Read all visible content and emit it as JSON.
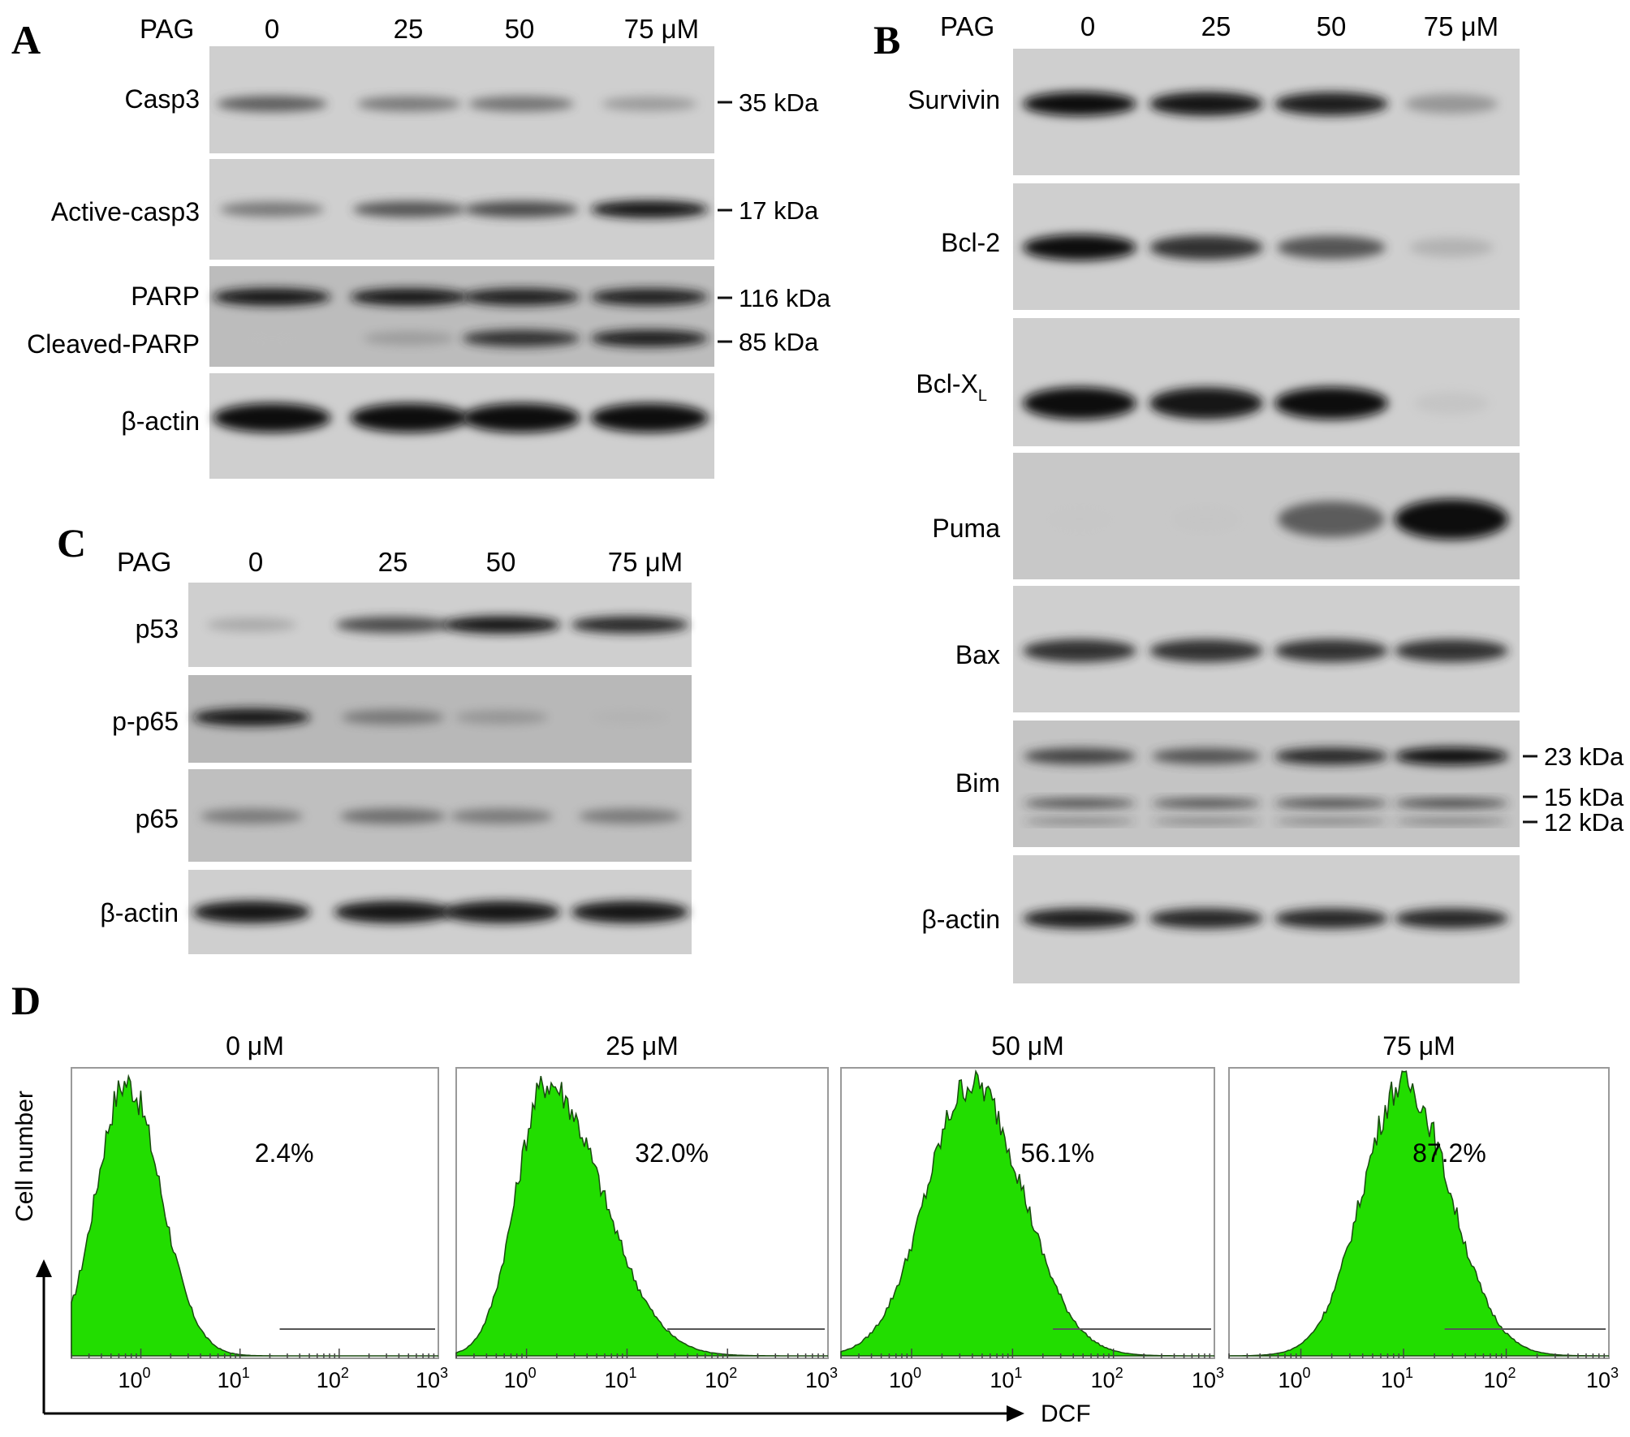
{
  "panelA": {
    "letter": "A",
    "treatment_label": "PAG",
    "lanes": [
      "0",
      "25",
      "50",
      "75 μM"
    ],
    "rows": [
      {
        "label": "Casp3",
        "band": [
          0.72,
          0.62,
          0.64,
          0.48
        ],
        "marker": "35 kDa"
      },
      {
        "label": "Active-casp3",
        "band": [
          0.62,
          0.75,
          0.78,
          0.95
        ],
        "marker": "17 kDa"
      },
      {
        "label": "PARP",
        "band": [
          0.95,
          0.92,
          0.9,
          0.9
        ],
        "marker": "116 kDa"
      },
      {
        "label": "Cleaved-PARP",
        "band": [
          0.02,
          0.42,
          0.85,
          0.9
        ],
        "marker": "85 kDa"
      },
      {
        "label": "β-actin",
        "band": [
          1.0,
          1.0,
          1.0,
          1.0
        ],
        "marker": ""
      }
    ]
  },
  "panelB": {
    "letter": "B",
    "treatment_label": "PAG",
    "lanes": [
      "0",
      "25",
      "50",
      "75 μM"
    ],
    "rows": [
      {
        "label": "Survivin",
        "band": [
          0.98,
          0.95,
          0.9,
          0.5
        ],
        "markers": []
      },
      {
        "label": "Bcl-2",
        "band": [
          1.0,
          0.85,
          0.75,
          0.35
        ],
        "markers": []
      },
      {
        "label": "Bcl-X",
        "label_sub": "L",
        "band": [
          1.0,
          0.95,
          1.0,
          0.2
        ],
        "markers": []
      },
      {
        "label": "Puma",
        "band": [
          0.05,
          0.1,
          0.72,
          1.0
        ],
        "markers": []
      },
      {
        "label": "Bax",
        "band": [
          0.85,
          0.85,
          0.85,
          0.85
        ],
        "markers": []
      },
      {
        "label": "Bim",
        "band": [
          0.8,
          0.75,
          0.88,
          0.98
        ],
        "markers": [
          "23 kDa",
          "15 kDa",
          "12 kDa"
        ]
      },
      {
        "label": "β-actin",
        "band": [
          0.9,
          0.88,
          0.88,
          0.88
        ],
        "markers": []
      }
    ]
  },
  "panelC": {
    "letter": "C",
    "treatment_label": "PAG",
    "lanes": [
      "0",
      "25",
      "50",
      "75 μM"
    ],
    "rows": [
      {
        "label": "p53",
        "band": [
          0.4,
          0.78,
          0.95,
          0.88
        ]
      },
      {
        "label": "p-p65",
        "band": [
          0.95,
          0.6,
          0.45,
          0.2
        ]
      },
      {
        "label": "p65",
        "band": [
          0.6,
          0.65,
          0.6,
          0.6
        ]
      },
      {
        "label": "β-actin",
        "band": [
          0.95,
          0.95,
          0.95,
          0.95
        ]
      }
    ]
  },
  "panelD": {
    "letter": "D",
    "y_axis_label": "Cell number",
    "x_axis_label": "DCF",
    "x_tick_base": "10",
    "x_tick_exponents": [
      "0",
      "1",
      "2",
      "3"
    ],
    "x_log_range": [
      -0.7,
      3
    ],
    "gate_start_log": [
      1.4,
      1.4,
      1.4,
      1.4
    ],
    "histograms": [
      {
        "title": "0 μM",
        "percent": "2.4%",
        "peak_log": -0.15,
        "sigma_left": 0.3,
        "sigma_right": 0.35
      },
      {
        "title": "25 μM",
        "percent": "32.0%",
        "peak_log": 0.2,
        "sigma_left": 0.3,
        "sigma_right": 0.55
      },
      {
        "title": "50 μM",
        "percent": "56.1%",
        "peak_log": 0.6,
        "sigma_left": 0.45,
        "sigma_right": 0.5
      },
      {
        "title": "75 μM",
        "percent": "87.2%",
        "peak_log": 1.0,
        "sigma_left": 0.4,
        "sigma_right": 0.45
      }
    ],
    "fill_color": "#22dd00"
  }
}
